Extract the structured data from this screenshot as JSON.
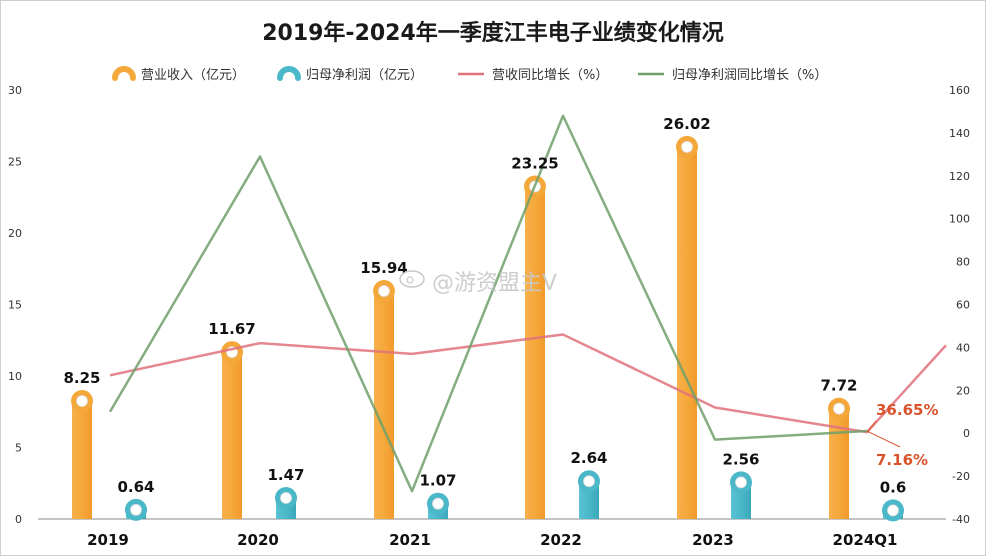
{
  "chart_data": {
    "type": "bar",
    "title": "2019年-2024年一季度江丰电子业绩变化情况",
    "categories": [
      "2019",
      "2020",
      "2021",
      "2022",
      "2023",
      "2024Q1"
    ],
    "legend": [
      {
        "label": "营业收入（亿元）",
        "marker": "bar-icon",
        "color": "#f5a83a"
      },
      {
        "label": "归母净利润（亿元）",
        "marker": "bar-icon",
        "color": "#4ab8c9"
      },
      {
        "label": "营收同比增长（%）",
        "marker": "line-icon",
        "color": "#e0727c"
      },
      {
        "label": "归母净利润同比增长（%）",
        "marker": "line-icon",
        "color": "#6f9f6a"
      }
    ],
    "legend_position": "top",
    "left_axis": {
      "ylim": [
        0,
        30
      ],
      "ticks": [
        "0",
        "5",
        "10",
        "15",
        "20",
        "25",
        "30"
      ]
    },
    "right_axis": {
      "ylim": [
        -40,
        160
      ],
      "ticks": [
        "-40",
        "-20",
        "0",
        "20",
        "40",
        "60",
        "80",
        "100",
        "120",
        "140",
        "160"
      ]
    },
    "grid": false,
    "series": [
      {
        "name": "营业收入（亿元）",
        "axis": "left",
        "kind": "bar",
        "color": "#f5a83a",
        "values": [
          8.25,
          11.67,
          15.94,
          23.25,
          26.02,
          7.72
        ],
        "labels": [
          "8.25",
          "11.67",
          "15.94",
          "23.25",
          "26.02",
          "7.72"
        ]
      },
      {
        "name": "归母净利润（亿元）",
        "axis": "left",
        "kind": "bar",
        "color": "#4ab8c9",
        "values": [
          0.64,
          1.47,
          1.07,
          2.64,
          2.56,
          0.6
        ],
        "labels": [
          "0.64",
          "1.47",
          "1.07",
          "2.64",
          "2.56",
          "0.6"
        ]
      },
      {
        "name": "营收同比增长（%）",
        "axis": "right",
        "kind": "line",
        "color": "#e0727c",
        "values": [
          27,
          42,
          37,
          46,
          12,
          0.5
        ],
        "extend_to": 41
      },
      {
        "name": "归母净利润同比增长（%）",
        "axis": "right",
        "kind": "line",
        "color": "#6f9f6a",
        "values": [
          10,
          129,
          -27,
          148,
          -3,
          1
        ]
      }
    ],
    "annotations": [
      {
        "text": "36.65%",
        "color": "#d9542c"
      },
      {
        "text": "7.16%",
        "color": "#d9542c"
      }
    ]
  },
  "watermark": "@游资盟主V"
}
